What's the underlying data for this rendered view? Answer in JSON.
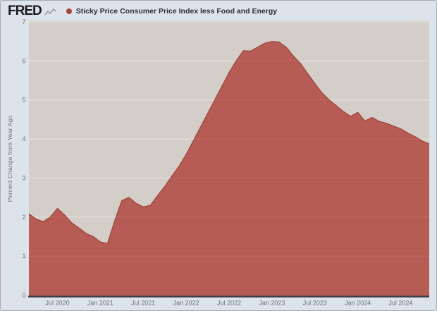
{
  "header": {
    "logo_text": "FRED",
    "legend_label": "Sticky Price Consumer Price Index less Food and Energy"
  },
  "colors": {
    "outer_background": "#dde3ea",
    "plot_background": "#d3cfc8",
    "area_fill": "#b65c54",
    "area_line": "#a34a43",
    "legend_dot": "#a6453d",
    "gridline": "#e2dfd9",
    "axis_line": "#3f3f46",
    "tick_text": "#6b7078",
    "legend_text": "#2b2f36",
    "logo_text": "#16191d",
    "logo_icon": "#98a0a8"
  },
  "chart_data": {
    "type": "area",
    "title": "Sticky Price Consumer Price Index less Food and Energy",
    "ylabel": "Percent Change from Year Ago",
    "xlabel": "",
    "ylim": [
      0,
      7
    ],
    "y_ticks": [
      0,
      1,
      2,
      3,
      4,
      5,
      6,
      7
    ],
    "x_tick_labels": [
      "Jul 2020",
      "Jan 2021",
      "Jul 2021",
      "Jan 2022",
      "Jul 2022",
      "Jan 2023",
      "Jul 2023",
      "Jan 2024",
      "Jul 2024"
    ],
    "grid": true,
    "legend_position": "top-left",
    "x": [
      "2020-03",
      "2020-04",
      "2020-05",
      "2020-06",
      "2020-07",
      "2020-08",
      "2020-09",
      "2020-10",
      "2020-11",
      "2020-12",
      "2021-01",
      "2021-02",
      "2021-03",
      "2021-04",
      "2021-05",
      "2021-06",
      "2021-07",
      "2021-08",
      "2021-09",
      "2021-10",
      "2021-11",
      "2021-12",
      "2022-01",
      "2022-02",
      "2022-03",
      "2022-04",
      "2022-05",
      "2022-06",
      "2022-07",
      "2022-08",
      "2022-09",
      "2022-10",
      "2022-11",
      "2022-12",
      "2023-01",
      "2023-02",
      "2023-03",
      "2023-04",
      "2023-05",
      "2023-06",
      "2023-07",
      "2023-08",
      "2023-09",
      "2023-10",
      "2023-11",
      "2023-12",
      "2024-01",
      "2024-02",
      "2024-03",
      "2024-04",
      "2024-05",
      "2024-06",
      "2024-07",
      "2024-08",
      "2024-09",
      "2024-10",
      "2024-11"
    ],
    "values": [
      2.08,
      1.95,
      1.88,
      2.0,
      2.22,
      2.05,
      1.85,
      1.72,
      1.58,
      1.5,
      1.36,
      1.32,
      1.9,
      2.42,
      2.5,
      2.35,
      2.26,
      2.3,
      2.55,
      2.78,
      3.05,
      3.3,
      3.6,
      3.95,
      4.3,
      4.65,
      5.0,
      5.35,
      5.7,
      6.0,
      6.26,
      6.25,
      6.35,
      6.45,
      6.5,
      6.48,
      6.35,
      6.12,
      5.93,
      5.67,
      5.42,
      5.18,
      5.0,
      4.85,
      4.7,
      4.58,
      4.68,
      4.46,
      4.55,
      4.45,
      4.4,
      4.33,
      4.26,
      4.15,
      4.06,
      3.95,
      3.87
    ]
  }
}
